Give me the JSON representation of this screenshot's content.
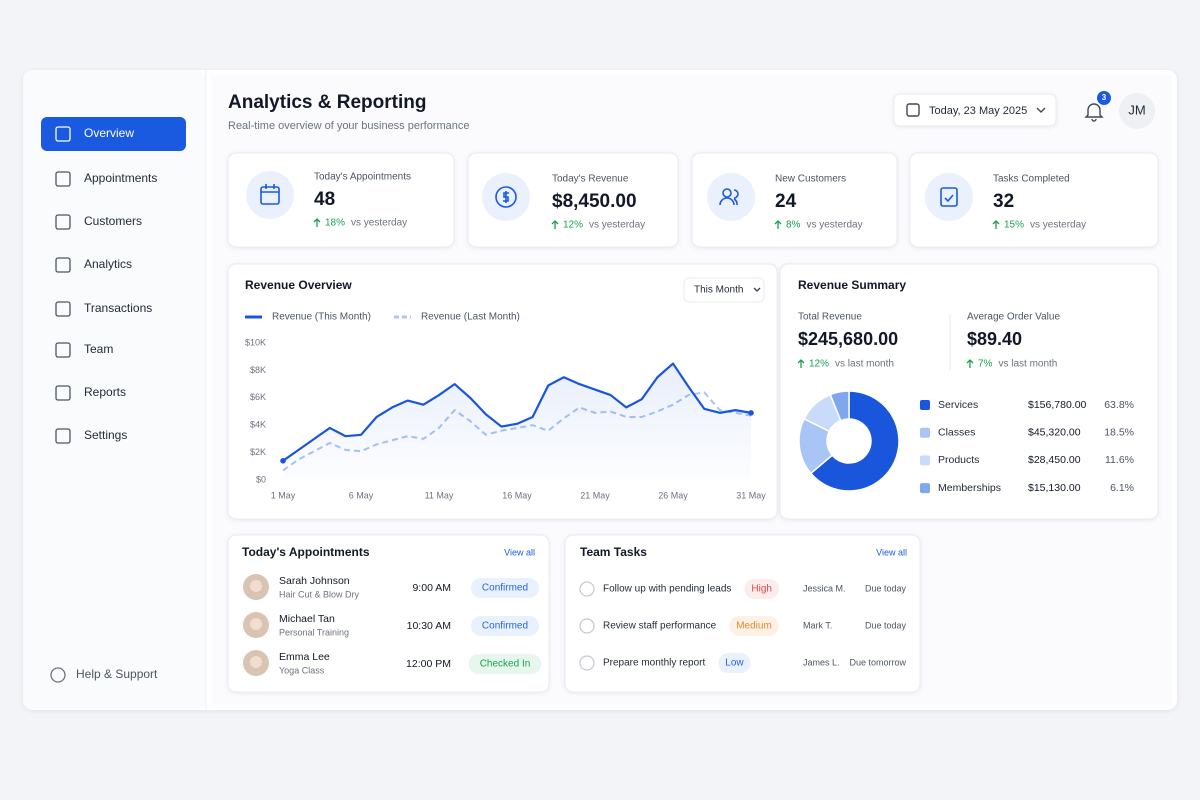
{
  "sidebar": {
    "items": [
      "Overview",
      "Appointments",
      "Customers",
      "Analytics",
      "Transactions",
      "Team",
      "Reports",
      "Settings"
    ],
    "help": "Help & Support"
  },
  "header": {
    "title": "Analytics & Reporting",
    "subtitle": "Real-time overview of your business performance",
    "date": "Today, 23 May 2025",
    "notifications": "3",
    "user": "JM"
  },
  "kpis": [
    {
      "label": "Today's Appointments",
      "value": "48",
      "change": "18%",
      "compare": "vs yesterday"
    },
    {
      "label": "Today's Revenue",
      "value": "$8,450.00",
      "change": "12%",
      "compare": "vs yesterday"
    },
    {
      "label": "New Customers",
      "value": "24",
      "change": "8%",
      "compare": "vs yesterday"
    },
    {
      "label": "Tasks Completed",
      "value": "32",
      "change": "15%",
      "compare": "vs yesterday"
    }
  ],
  "chart_data": [
    {
      "type": "line",
      "title": "Revenue Overview",
      "period": "This Month",
      "categories": [
        "1 May",
        null,
        null,
        null,
        null,
        "6 May",
        null,
        null,
        null,
        null,
        "11 May",
        null,
        null,
        null,
        null,
        "16 May",
        null,
        null,
        null,
        null,
        "21 May",
        null,
        null,
        null,
        null,
        "26 May",
        null,
        null,
        null,
        null,
        "31 May"
      ],
      "series": [
        {
          "name": "Revenue (This Month)",
          "color": "#1a56db",
          "values": [
            1400,
            2200,
            3000,
            3800,
            3200,
            3300,
            4600,
            5300,
            5800,
            5500,
            6200,
            7000,
            6000,
            4800,
            3900,
            4100,
            4600,
            6900,
            7500,
            7000,
            6600,
            6200,
            5300,
            5900,
            7500,
            8500,
            6800,
            5200,
            4900,
            5100,
            4900
          ]
        },
        {
          "name": "Revenue (Last Month)",
          "color": "#a9c4f5",
          "dashed": true,
          "values": [
            700,
            1500,
            2100,
            2700,
            2200,
            2100,
            2600,
            2900,
            3200,
            3000,
            3800,
            5100,
            4300,
            3300,
            3600,
            3800,
            4000,
            3600,
            4500,
            5300,
            4900,
            5000,
            4600,
            4600,
            5000,
            5500,
            6200,
            6400,
            5100,
            4900,
            4700
          ]
        }
      ],
      "ylim": [
        0,
        10000
      ],
      "yticks": [
        {
          "value": 0,
          "label": "$0"
        },
        {
          "value": 2000,
          "label": "$2K"
        },
        {
          "value": 4000,
          "label": "$4K"
        },
        {
          "value": 6000,
          "label": "$6K"
        },
        {
          "value": 8000,
          "label": "$8K"
        },
        {
          "value": 10000,
          "label": "$10K"
        }
      ],
      "grid": false
    },
    {
      "type": "pie",
      "title": "Revenue Summary",
      "categories": [
        "Services",
        "Classes",
        "Products",
        "Memberships"
      ],
      "values": [
        63.8,
        18.5,
        11.6,
        6.1
      ],
      "value_labels": [
        "63.8%",
        "18.5%",
        "11.6%",
        "6.1%"
      ],
      "amounts": [
        "$156,780.00",
        "$45,320.00",
        "$28,450.00",
        "$15,130.00"
      ],
      "colors": [
        "#1a56db",
        "#a8c5f5",
        "#c9dbfa",
        "#7ea7ee"
      ]
    }
  ],
  "summary": {
    "total_label": "Total Revenue",
    "total": "$245,680.00",
    "total_change": "12%",
    "total_compare": "vs last month",
    "aov_label": "Average Order Value",
    "aov": "$89.40",
    "aov_change": "7%",
    "aov_compare": "vs last month"
  },
  "appointments": {
    "title": "Today's Appointments",
    "link": "View all",
    "rows": [
      {
        "name": "Sarah Johnson",
        "service": "Hair Cut & Blow Dry",
        "time": "9:00 AM",
        "status": "Confirmed"
      },
      {
        "name": "Michael Tan",
        "service": "Personal Training",
        "time": "10:30 AM",
        "status": "Confirmed"
      },
      {
        "name": "Emma Lee",
        "service": "Yoga Class",
        "time": "12:00 PM",
        "status": "Checked In"
      }
    ]
  },
  "tasks": {
    "title": "Team Tasks",
    "link": "View all",
    "rows": [
      {
        "task": "Follow up with pending leads",
        "priority": "High",
        "assignee": "Jessica M.",
        "due": "Due today"
      },
      {
        "task": "Review staff performance",
        "priority": "Medium",
        "assignee": "Mark T.",
        "due": "Due today"
      },
      {
        "task": "Prepare monthly report",
        "priority": "Low",
        "assignee": "James L.",
        "due": "Due tomorrow"
      }
    ]
  }
}
